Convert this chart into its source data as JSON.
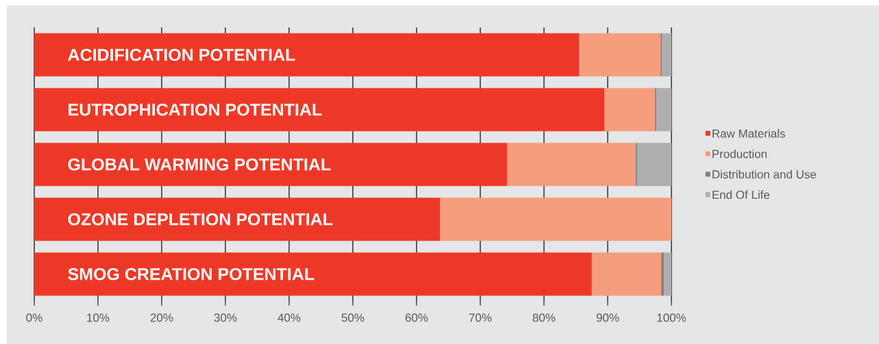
{
  "chart_data": {
    "type": "bar",
    "orientation": "horizontal",
    "stacked": true,
    "categories": [
      "ACIDIFICATION POTENTIAL",
      "EUTROPHICATION POTENTIAL",
      "GLOBAL WARMING POTENTIAL",
      "OZONE DEPLETION POTENTIAL",
      "SMOG CREATION POTENTIAL"
    ],
    "series": [
      {
        "name": "Raw Materials",
        "color": "#ee3827",
        "values": [
          85.5,
          89.5,
          74.2,
          63.7,
          87.5
        ]
      },
      {
        "name": "Production",
        "color": "#f59d7c",
        "values": [
          12.8,
          7.9,
          20.2,
          36.3,
          10.9
        ]
      },
      {
        "name": "Distribution and Use",
        "color": "#7f7f7f",
        "values": [
          0.2,
          0.2,
          0.2,
          0,
          0.4
        ]
      },
      {
        "name": "End Of Life",
        "color": "#aeaeae",
        "values": [
          1.5,
          2.4,
          5.4,
          0,
          1.2
        ]
      }
    ],
    "xlim": [
      0,
      100
    ],
    "xticks": [
      {
        "value": 0,
        "label": "0%"
      },
      {
        "value": 10,
        "label": "10%"
      },
      {
        "value": 20,
        "label": "20%"
      },
      {
        "value": 30,
        "label": "30%"
      },
      {
        "value": 40,
        "label": "40%"
      },
      {
        "value": 50,
        "label": "50%"
      },
      {
        "value": 60,
        "label": "60%"
      },
      {
        "value": 70,
        "label": "70%"
      },
      {
        "value": 80,
        "label": "80%"
      },
      {
        "value": 90,
        "label": "90%"
      },
      {
        "value": 100,
        "label": "100%"
      }
    ],
    "grid": "x",
    "legend": "right"
  }
}
